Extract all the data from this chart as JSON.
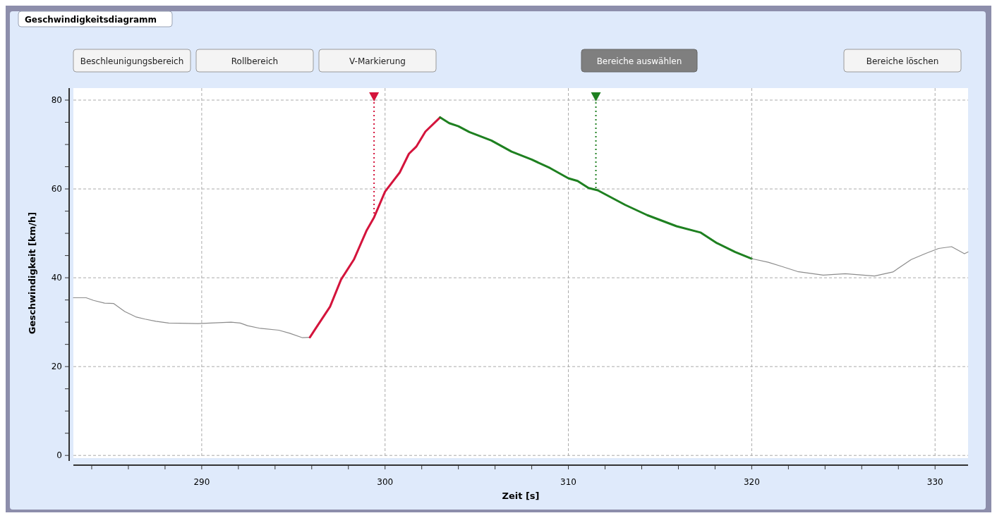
{
  "chart_data": {
    "type": "line",
    "title": "Geschwindigkeitsdiagramm",
    "xlabel": "Zeit [s]",
    "ylabel": "Geschwindigkeit  [km/h]",
    "annotations": [
      "Beschleunigungsbereich",
      "Rollbereich",
      "V-Markierung",
      "Bereiche auswählen",
      "Bereiche löschen"
    ],
    "xlim": [
      283,
      331.8
    ],
    "ylim": [
      -0.6,
      82.7
    ],
    "xticks": [
      {
        "value": 284,
        "label": null
      },
      {
        "value": 286,
        "label": null
      },
      {
        "value": 288,
        "label": null
      },
      290,
      {
        "value": 292,
        "label": null
      },
      {
        "value": 294,
        "label": null
      },
      {
        "value": 296,
        "label": null
      },
      {
        "value": 298,
        "label": null
      },
      300,
      {
        "value": 302,
        "label": null
      },
      {
        "value": 304,
        "label": null
      },
      {
        "value": 306,
        "label": null
      },
      {
        "value": 308,
        "label": null
      },
      310,
      {
        "value": 312,
        "label": null
      },
      {
        "value": 314,
        "label": null
      },
      {
        "value": 316,
        "label": null
      },
      {
        "value": 318,
        "label": null
      },
      320,
      {
        "value": 322,
        "label": null
      },
      {
        "value": 324,
        "label": null
      },
      {
        "value": 326,
        "label": null
      },
      {
        "value": 328,
        "label": null
      },
      330
    ],
    "yticks": [
      0,
      {
        "value": 5,
        "label": null
      },
      {
        "value": 10,
        "label": null
      },
      {
        "value": 15,
        "label": null
      },
      20,
      {
        "value": 25,
        "label": null
      },
      {
        "value": 30,
        "label": null
      },
      {
        "value": 35,
        "label": null
      },
      40,
      {
        "value": 45,
        "label": null
      },
      {
        "value": 50,
        "label": null
      },
      {
        "value": 55,
        "label": null
      },
      60,
      {
        "value": 65,
        "label": null
      },
      {
        "value": 70,
        "label": null
      },
      {
        "value": 75,
        "label": null
      },
      80
    ],
    "grid": true,
    "series": [
      {
        "color": "#8c8c8c",
        "x": [
          283.0,
          283.7,
          284.1,
          284.7,
          285.2,
          285.8,
          286.4,
          286.9,
          287.5,
          288.2,
          289.8,
          291.6,
          292.1,
          292.5,
          293.2,
          294.2,
          294.8,
          295.5,
          295.9
        ],
        "values": [
          35.5,
          35.5,
          34.9,
          34.3,
          34.2,
          32.4,
          31.2,
          30.7,
          30.2,
          29.8,
          29.7,
          30.0,
          29.8,
          29.2,
          28.6,
          28.2,
          27.5,
          26.5,
          26.6
        ]
      },
      {
        "color": "#d4143c",
        "x": [
          295.9,
          296.2,
          297.0,
          297.6,
          298.3,
          299.0,
          299.4,
          300.0,
          300.8,
          301.3,
          301.7,
          302.2,
          303.0
        ],
        "values": [
          26.6,
          28.5,
          33.5,
          39.6,
          44.1,
          50.7,
          53.6,
          59.4,
          63.7,
          67.9,
          69.5,
          72.9,
          76.1
        ]
      },
      {
        "color": "#1e8020",
        "x": [
          303.0,
          303.5,
          304.0,
          304.6,
          305.8,
          306.9,
          308.0,
          309.0,
          310.0,
          310.5,
          311.1,
          311.6,
          313.1,
          314.3,
          315.9,
          317.2,
          318.1,
          319.1,
          320.0
        ],
        "values": [
          76.1,
          74.8,
          74.1,
          72.8,
          70.9,
          68.4,
          66.6,
          64.7,
          62.4,
          61.8,
          60.2,
          59.7,
          56.4,
          54.1,
          51.6,
          50.2,
          47.8,
          45.8,
          44.3
        ]
      },
      {
        "color": "#8c8c8c",
        "x": [
          320.0,
          320.9,
          321.6,
          322.5,
          323.9,
          325.1,
          326.7,
          327.7,
          328.7,
          329.5,
          330.2,
          330.9,
          331.6,
          331.8
        ],
        "values": [
          44.3,
          43.5,
          42.6,
          41.4,
          40.6,
          40.9,
          40.4,
          41.3,
          44.1,
          45.5,
          46.6,
          47.0,
          45.4,
          45.8
        ]
      }
    ],
    "ref_lines": [
      {
        "axis": "x",
        "value": 299.4,
        "color": "#d4143c",
        "line_style": "dotted"
      },
      {
        "axis": "x",
        "value": 311.5,
        "color": "#1e8020",
        "line_style": "dotted"
      }
    ]
  }
}
